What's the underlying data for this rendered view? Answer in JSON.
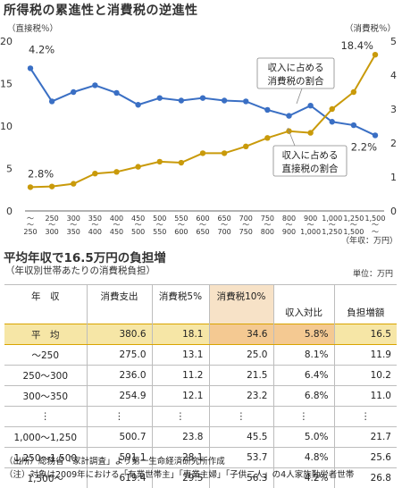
{
  "title": "所得税の累進性と消費税の逆進性",
  "chart_data": {
    "type": "line",
    "x": [
      "〜250",
      "250〜300",
      "300〜350",
      "350〜400",
      "400〜450",
      "450〜500",
      "500〜550",
      "550〜600",
      "600〜650",
      "650〜700",
      "700〜750",
      "750〜800",
      "800〜900",
      "900〜1,000",
      "1,000〜1,250",
      "1,250〜1,500",
      "1,500〜"
    ],
    "x_tick_top": [
      "〜",
      "250",
      "300",
      "350",
      "400",
      "450",
      "500",
      "550",
      "600",
      "650",
      "700",
      "750",
      "800",
      "900",
      "1,000",
      "1,250",
      "1,500"
    ],
    "x_tick_bottom": [
      "250",
      "300",
      "350",
      "400",
      "450",
      "500",
      "550",
      "600",
      "650",
      "700",
      "750",
      "800",
      "900",
      "1,000",
      "1,250",
      "1,500",
      "〜"
    ],
    "xunit": "（年収：万円）",
    "ylabel_left": "（直接税％）",
    "ylabel_right": "（消費税％）",
    "yticks_left": [
      "0",
      "5",
      "10",
      "15",
      "20"
    ],
    "yticks_right": [
      "0",
      "1",
      "2",
      "3",
      "4",
      "5"
    ],
    "ylim_left": [
      0,
      20
    ],
    "ylim_right": [
      0,
      5
    ],
    "grid": false,
    "series": [
      {
        "name": "収入に占める消費税の割合",
        "axis": "left",
        "color": "#3a6fc4",
        "values": [
          16.8,
          12.9,
          14.0,
          14.8,
          13.9,
          12.5,
          13.3,
          13.0,
          13.3,
          13.0,
          12.9,
          11.9,
          11.2,
          12.4,
          10.5,
          10.1,
          8.9
        ]
      },
      {
        "name": "収入に占める直接税の割合",
        "axis": "right",
        "color": "#c99a0a",
        "values": [
          0.7,
          0.72,
          0.8,
          1.1,
          1.15,
          1.3,
          1.45,
          1.42,
          1.7,
          1.7,
          1.9,
          2.15,
          2.35,
          2.3,
          3.0,
          3.5,
          4.6
        ]
      }
    ],
    "annotations": [
      "4.2%",
      "2.8%",
      "18.4%",
      "2.2%"
    ],
    "legend": [
      {
        "lines": [
          "収入に占める",
          "消費税の割合"
        ]
      },
      {
        "lines": [
          "収入に占める",
          "直接税の割合"
        ]
      }
    ]
  },
  "section2": {
    "title": "平均年収で16.5万円の負担増",
    "subtitle": "（年収別世帯あたりの消費税負担）",
    "unit": "単位：万円",
    "headers": [
      "年　収",
      "消費支出",
      "消費税5%",
      "消費税10%",
      "収入対比",
      "負担増額"
    ],
    "rows": [
      [
        "平　均",
        "380.6",
        "18.1",
        "34.6",
        "5.8%",
        "16.5"
      ],
      [
        "〜250",
        "275.0",
        "13.1",
        "25.0",
        "8.1%",
        "11.9"
      ],
      [
        "250〜300",
        "236.0",
        "11.2",
        "21.5",
        "6.4%",
        "10.2"
      ],
      [
        "300〜350",
        "254.9",
        "12.1",
        "23.2",
        "6.8%",
        "11.0"
      ],
      [
        "⋮",
        "⋮",
        "⋮",
        "⋮",
        "⋮",
        "⋮"
      ],
      [
        "1,000〜1,250",
        "500.7",
        "23.8",
        "45.5",
        "5.0%",
        "21.7"
      ],
      [
        "1,250〜1,500",
        "591.1",
        "28.1",
        "53.7",
        "4.8%",
        "25.6"
      ],
      [
        "1,500〜",
        "619.4",
        "29.5",
        "56.3",
        "4.2%",
        "26.8"
      ]
    ]
  },
  "notes": [
    "（出所）総務省「家計調査」より第一生命経済研究所作成",
    "（注）対象は2009年における「有業世帯主」「専業主婦」「子供二人」の4人家族勤労者世帯"
  ]
}
